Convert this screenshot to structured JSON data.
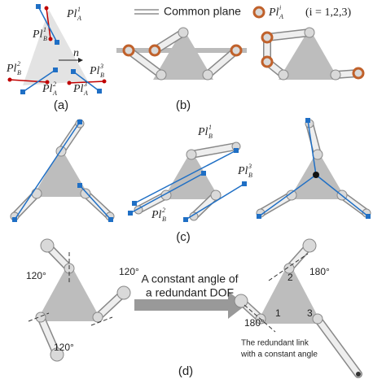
{
  "legend": {
    "plane": "Common plane",
    "pl": {
      "base": "Pl",
      "sub": "A",
      "sup": "i"
    },
    "range": "(i = 1,2,3)"
  },
  "panel_a": {
    "labels": [
      {
        "base": "Pl",
        "sub": "A",
        "sup": "1"
      },
      {
        "base": "Pl",
        "sub": "B",
        "sup": "1"
      },
      {
        "base": "Pl",
        "sub": "B",
        "sup": "2"
      },
      {
        "base": "Pl",
        "sub": "A",
        "sup": "2"
      },
      {
        "base": "Pl",
        "sub": "A",
        "sup": "3"
      },
      {
        "base": "Pl",
        "sub": "B",
        "sup": "3"
      }
    ],
    "normal": "n",
    "caption": "(a)"
  },
  "panel_b": {
    "caption": "(b)"
  },
  "panel_c": {
    "labels": [
      {
        "base": "Pl",
        "sub": "B",
        "sup": "1"
      },
      {
        "base": "Pl",
        "sub": "B",
        "sup": "3"
      },
      {
        "base": "Pl",
        "sub": "B",
        "sup": "2"
      }
    ],
    "caption": "(c)"
  },
  "panel_d": {
    "angles_left": [
      "120°",
      "120°",
      "120°"
    ],
    "arrow_text": [
      "A constant angle of",
      "a redundant DOF"
    ],
    "angles_right": [
      "180°",
      "180°"
    ],
    "joints": [
      "1",
      "2",
      "3"
    ],
    "note": [
      "The redundant link",
      "with a constant angle"
    ],
    "caption": "(d)"
  }
}
